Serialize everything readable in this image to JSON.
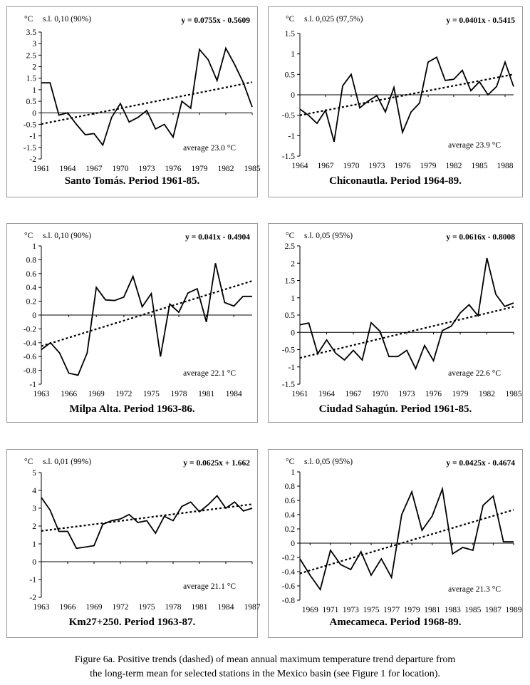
{
  "caption": {
    "line1": "Figure 6a. Positive trends (dashed) of mean annual maximum temperature trend departure from",
    "line2": "the long-term mean for selected stations in the Mexico basin (see Figure 1 for location)."
  },
  "chart_data": [
    {
      "type": "line",
      "title": "Santo Tomás. Period 1961-85.",
      "unit": "°C",
      "significance": "s.l. 0,10 (90%)",
      "equation": "y = 0.0755x - 0.5609",
      "average": "average  23.0 °C",
      "ylim": [
        -2,
        3.5
      ],
      "ytick_step": 0.5,
      "xlim": [
        1961,
        1985
      ],
      "xticks": [
        1961,
        1964,
        1967,
        1970,
        1973,
        1976,
        1979,
        1982,
        1985
      ],
      "trend": {
        "slope": 0.0755,
        "intercept": -0.5609
      },
      "series": [
        {
          "name": "departure",
          "x": [
            1961,
            1962,
            1963,
            1964,
            1965,
            1966,
            1967,
            1968,
            1969,
            1970,
            1971,
            1972,
            1973,
            1974,
            1975,
            1976,
            1977,
            1978,
            1979,
            1980,
            1981,
            1982,
            1983,
            1984,
            1985
          ],
          "values": [
            1.3,
            1.3,
            -0.1,
            0.0,
            -0.5,
            -0.95,
            -0.9,
            -1.4,
            -0.2,
            0.4,
            -0.4,
            -0.2,
            0.1,
            -0.7,
            -0.5,
            -1.05,
            0.5,
            0.2,
            2.75,
            2.3,
            1.4,
            2.8,
            2.1,
            1.3,
            0.25
          ]
        }
      ]
    },
    {
      "type": "line",
      "title": "Chiconautla. Period 1964-89.",
      "unit": "°C",
      "significance": "s.l. 0,025 (97,5%)",
      "equation": "y = 0.0401x - 0.5415",
      "average": "average 23.9 °C",
      "ylim": [
        -1.5,
        1.5
      ],
      "ytick_step": 0.5,
      "xlim": [
        1964,
        1989
      ],
      "xticks": [
        1964,
        1967,
        1970,
        1973,
        1976,
        1979,
        1982,
        1985,
        1988
      ],
      "trend": {
        "slope": 0.0401,
        "intercept": -0.5415
      },
      "series": [
        {
          "name": "departure",
          "x": [
            1964,
            1965,
            1966,
            1967,
            1968,
            1969,
            1970,
            1971,
            1972,
            1973,
            1974,
            1975,
            1976,
            1977,
            1978,
            1979,
            1980,
            1981,
            1982,
            1983,
            1984,
            1985,
            1986,
            1987,
            1988,
            1989
          ],
          "values": [
            -0.35,
            -0.5,
            -0.7,
            -0.38,
            -1.15,
            0.22,
            0.5,
            -0.32,
            -0.15,
            -0.02,
            -0.42,
            0.18,
            -0.92,
            -0.42,
            -0.2,
            0.8,
            0.92,
            0.35,
            0.38,
            0.6,
            0.1,
            0.32,
            0.0,
            0.2,
            0.8,
            0.2
          ]
        }
      ]
    },
    {
      "type": "line",
      "title": "Milpa Alta. Period 1963-86.",
      "unit": "°C",
      "significance": "s.l. 0,10 (90%)",
      "equation": "y = 0.041x - 0.4904",
      "average": "average 22.1 °C",
      "ylim": [
        -1,
        1
      ],
      "ytick_step": 0.2,
      "xlim": [
        1963,
        1986
      ],
      "xticks": [
        1963,
        1966,
        1969,
        1972,
        1975,
        1978,
        1981,
        1984
      ],
      "trend": {
        "slope": 0.041,
        "intercept": -0.4904
      },
      "series": [
        {
          "name": "departure",
          "x": [
            1963,
            1964,
            1965,
            1966,
            1967,
            1968,
            1969,
            1970,
            1971,
            1972,
            1973,
            1974,
            1975,
            1976,
            1977,
            1978,
            1979,
            1980,
            1981,
            1982,
            1983,
            1984,
            1985,
            1986
          ],
          "values": [
            -0.5,
            -0.4,
            -0.55,
            -0.84,
            -0.87,
            -0.55,
            0.4,
            0.22,
            0.21,
            0.26,
            0.56,
            0.12,
            0.31,
            -0.6,
            0.16,
            0.04,
            0.32,
            0.38,
            -0.1,
            0.75,
            0.18,
            0.13,
            0.27,
            0.27
          ]
        }
      ]
    },
    {
      "type": "line",
      "title": "Ciudad Sahagún. Period 1961-85.",
      "unit": "°C",
      "significance": "s.l. 0,05 (95%)",
      "equation": "y = 0.0616x - 0.8008",
      "average": "average 22.6 °C",
      "ylim": [
        -1.5,
        2.5
      ],
      "ytick_step": 0.5,
      "xlim": [
        1961,
        1985
      ],
      "xticks": [
        1961,
        1964,
        1967,
        1970,
        1973,
        1976,
        1979,
        1982,
        1985
      ],
      "trend": {
        "slope": 0.0616,
        "intercept": -0.8008
      },
      "series": [
        {
          "name": "departure",
          "x": [
            1961,
            1962,
            1963,
            1964,
            1965,
            1966,
            1967,
            1968,
            1969,
            1970,
            1971,
            1972,
            1973,
            1974,
            1975,
            1976,
            1977,
            1978,
            1979,
            1980,
            1981,
            1982,
            1983,
            1984,
            1985
          ],
          "values": [
            0.22,
            0.27,
            -0.62,
            -0.22,
            -0.6,
            -0.8,
            -0.52,
            -0.8,
            0.28,
            0.03,
            -0.7,
            -0.7,
            -0.52,
            -1.05,
            -0.38,
            -0.82,
            0.05,
            0.18,
            0.56,
            0.8,
            0.48,
            2.15,
            1.1,
            0.75,
            0.85
          ]
        }
      ]
    },
    {
      "type": "line",
      "title": "Km27+250. Period 1963-87.",
      "unit": "°C",
      "significance": "s.l. 0,01 (99%)",
      "equation": "y = 0.0625x + 1.662",
      "average": "average 21.1 °C",
      "ylim": [
        -2,
        5
      ],
      "ytick_step": 1,
      "xlim": [
        1963,
        1987
      ],
      "xticks": [
        1963,
        1966,
        1969,
        1972,
        1975,
        1978,
        1981,
        1984,
        1987
      ],
      "trend": {
        "slope": 0.0625,
        "intercept": 1.662
      },
      "series": [
        {
          "name": "departure",
          "x": [
            1963,
            1964,
            1965,
            1966,
            1967,
            1968,
            1969,
            1970,
            1971,
            1972,
            1973,
            1974,
            1975,
            1976,
            1977,
            1978,
            1979,
            1980,
            1981,
            1982,
            1983,
            1984,
            1985,
            1986,
            1987
          ],
          "values": [
            3.6,
            2.9,
            1.7,
            1.7,
            0.75,
            0.82,
            0.9,
            2.1,
            2.3,
            2.4,
            2.65,
            2.2,
            2.3,
            1.6,
            2.55,
            2.3,
            3.1,
            3.35,
            2.8,
            3.2,
            3.7,
            3.0,
            3.35,
            2.85,
            3.0
          ]
        }
      ]
    },
    {
      "type": "line",
      "title": "Amecameca. Period 1968-89.",
      "unit": "°C",
      "significance": "s.l. 0,05 (95%)",
      "equation": "y = 0.0425x - 0.4674",
      "average": "average 21.3 °C",
      "ylim": [
        -0.8,
        1
      ],
      "ytick_step": 0.2,
      "xlim": [
        1968,
        1989
      ],
      "xticks": [
        1969,
        1971,
        1973,
        1975,
        1977,
        1979,
        1981,
        1983,
        1985,
        1987,
        1989
      ],
      "trend": {
        "slope": 0.0425,
        "intercept": -0.4674
      },
      "series": [
        {
          "name": "departure",
          "x": [
            1968,
            1969,
            1970,
            1971,
            1972,
            1973,
            1974,
            1975,
            1976,
            1977,
            1978,
            1979,
            1980,
            1981,
            1982,
            1983,
            1984,
            1985,
            1986,
            1987,
            1988,
            1989
          ],
          "values": [
            -0.22,
            -0.45,
            -0.65,
            -0.1,
            -0.3,
            -0.37,
            -0.12,
            -0.45,
            -0.22,
            -0.48,
            0.4,
            0.72,
            0.18,
            0.38,
            0.76,
            -0.15,
            -0.06,
            -0.1,
            0.53,
            0.66,
            0.02,
            0.02
          ]
        }
      ]
    }
  ]
}
